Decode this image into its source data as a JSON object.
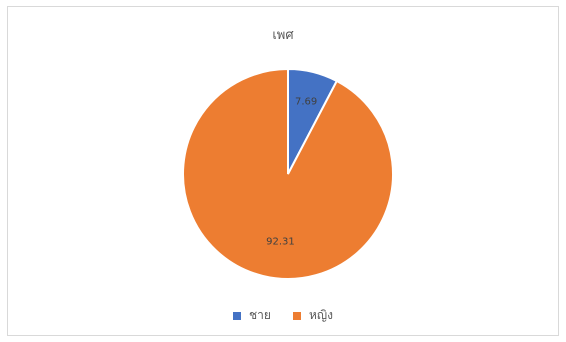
{
  "chart_data": {
    "type": "pie",
    "title": "เพศ",
    "categories": [
      "ชาย",
      "หญิง"
    ],
    "values": [
      7.69,
      92.31
    ],
    "data_labels": [
      "7.69",
      "92.31"
    ],
    "colors": [
      "#4472C4",
      "#ED7D31"
    ],
    "legend_position": "bottom"
  }
}
